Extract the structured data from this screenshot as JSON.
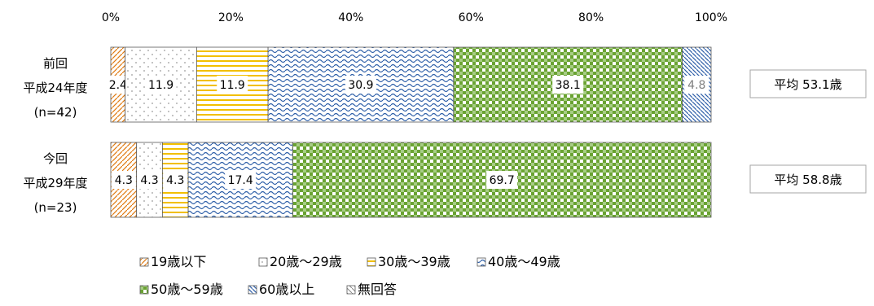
{
  "chart_data": {
    "type": "bar",
    "orientation": "horizontal",
    "stacked": "100%",
    "x_ticks": [
      "0%",
      "20%",
      "40%",
      "60%",
      "80%",
      "100%"
    ],
    "xlim": [
      0,
      100
    ],
    "grid": false,
    "legend_position": "bottom",
    "categories": [
      {
        "line1": "前回",
        "line2": "平成24年度",
        "line3": "(n=42)"
      },
      {
        "line1": "今回",
        "line2": "平成29年度",
        "line3": "(n=23)"
      }
    ],
    "series": [
      {
        "name": "19歳以下",
        "values": [
          2.4,
          4.3
        ],
        "color": "#e07a10",
        "pattern": "stripes"
      },
      {
        "name": "20歳～29歳",
        "values": [
          11.9,
          4.3
        ],
        "color": "#b8b8b8",
        "pattern": "dots"
      },
      {
        "name": "30歳～39歳",
        "values": [
          11.9,
          4.3
        ],
        "color": "#f2bf00",
        "pattern": "hlines"
      },
      {
        "name": "40歳～49歳",
        "values": [
          30.9,
          17.4
        ],
        "color": "#2e5fa8",
        "pattern": "waves"
      },
      {
        "name": "50歳～59歳",
        "values": [
          38.1,
          69.7
        ],
        "color": "#6aa332",
        "pattern": "checks"
      },
      {
        "name": "60歳以上",
        "values": [
          4.8,
          0
        ],
        "color": "#2e5fa8",
        "pattern": "diag"
      },
      {
        "name": "無回答",
        "values": [
          0,
          0
        ],
        "color": "#888888",
        "pattern": "none"
      }
    ],
    "data_labels": [
      [
        "2.4",
        "11.9",
        "11.9",
        "30.9",
        "38.1",
        "4.8",
        ""
      ],
      [
        "4.3",
        "4.3",
        "4.3",
        "17.4",
        "69.7",
        "",
        ""
      ]
    ],
    "averages": [
      "平均 53.1歳",
      "平均 58.8歳"
    ]
  }
}
